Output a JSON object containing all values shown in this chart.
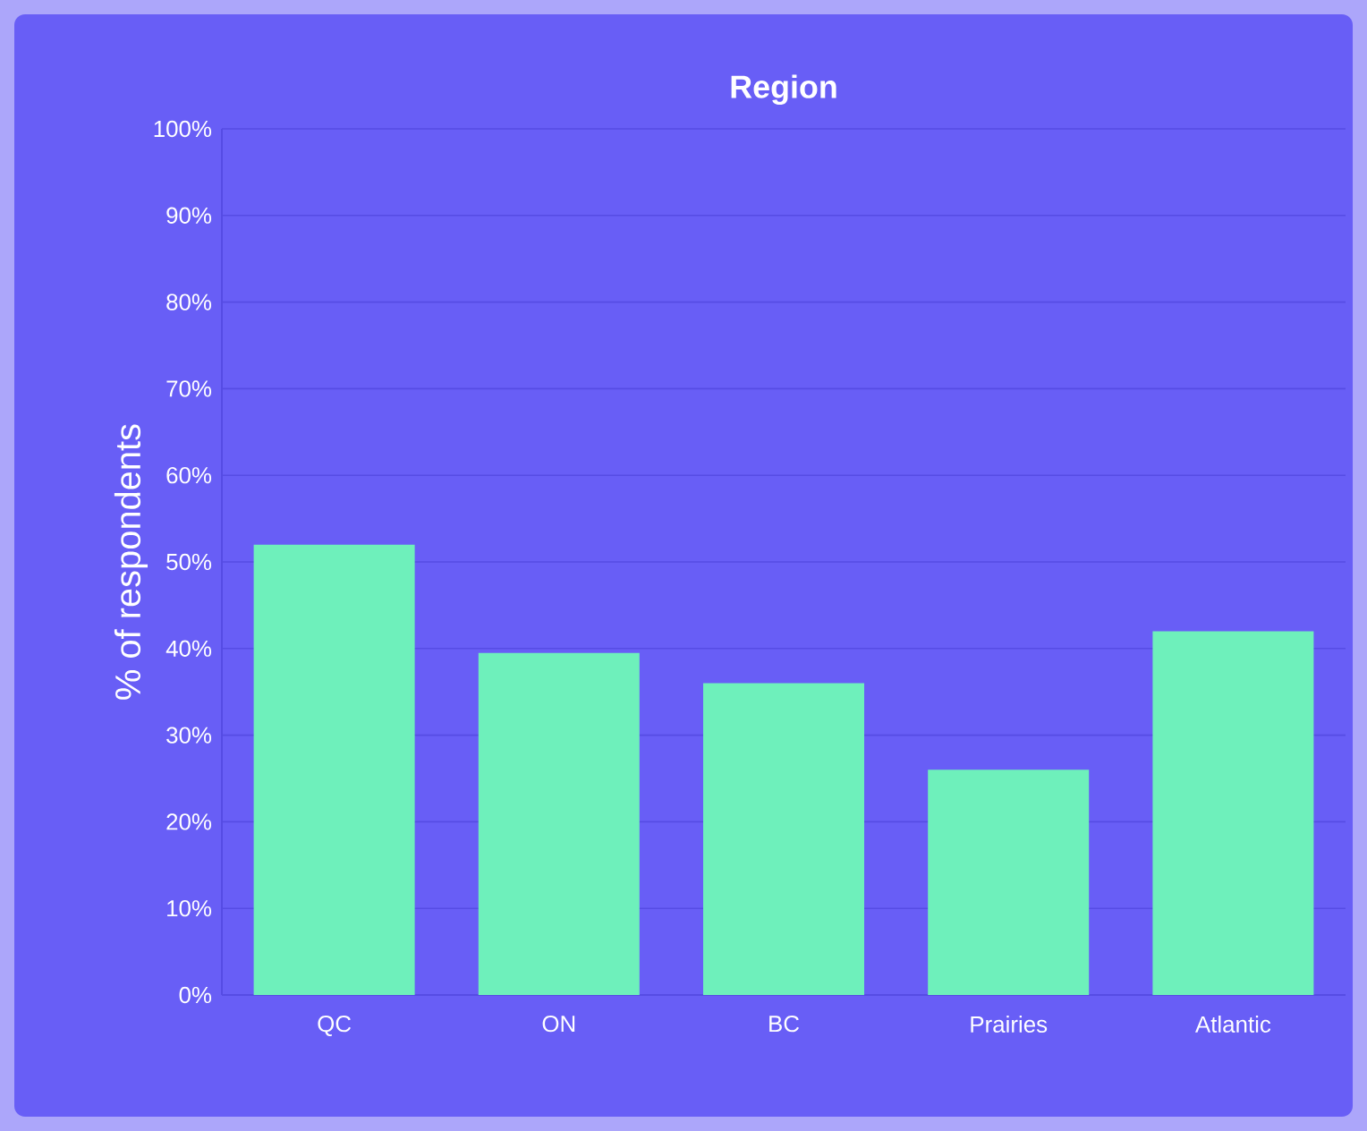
{
  "chart_data": {
    "type": "bar",
    "title": "Region",
    "ylabel": "% of respondents",
    "categories": [
      "QC",
      "ON",
      "BC",
      "Prairies",
      "Atlantic"
    ],
    "values": [
      52,
      39.5,
      36,
      26,
      42
    ],
    "color": "#6ef0bb",
    "ylim": [
      0,
      100
    ],
    "yticks": [
      {
        "value": 0,
        "label": "0%"
      },
      {
        "value": 10,
        "label": "10%"
      },
      {
        "value": 20,
        "label": "20%"
      },
      {
        "value": 30,
        "label": "30%"
      },
      {
        "value": 40,
        "label": "40%"
      },
      {
        "value": 50,
        "label": "50%"
      },
      {
        "value": 60,
        "label": "60%"
      },
      {
        "value": 70,
        "label": "70%"
      },
      {
        "value": 80,
        "label": "80%"
      },
      {
        "value": 90,
        "label": "90%"
      },
      {
        "value": 100,
        "label": "100%"
      }
    ],
    "grid": "y"
  }
}
